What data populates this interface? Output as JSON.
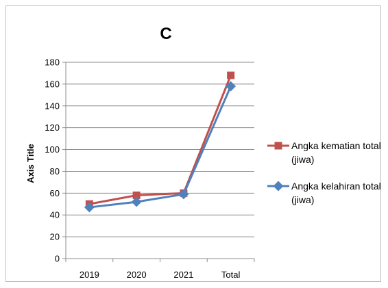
{
  "chart_data": {
    "type": "line",
    "title": "C",
    "xlabel": "",
    "ylabel": "Axis Title",
    "categories": [
      "2019",
      "2020",
      "2021",
      "Total"
    ],
    "ylim": [
      0,
      180
    ],
    "yticks": [
      0,
      20,
      40,
      60,
      80,
      100,
      120,
      140,
      160,
      180
    ],
    "grid": true,
    "legend_position": "right",
    "series": [
      {
        "name_lines": [
          "Angka kematian total",
          "(jiwa)"
        ],
        "name": "Angka kematian total (jiwa)",
        "color": "#c0504d",
        "marker": "square",
        "values": [
          50,
          58,
          60,
          168
        ]
      },
      {
        "name_lines": [
          "Angka kelahiran total",
          "(jiwa)"
        ],
        "name": "Angka kelahiran total (jiwa)",
        "color": "#4f81bd",
        "marker": "diamond",
        "values": [
          47,
          52,
          59,
          158
        ]
      }
    ]
  }
}
